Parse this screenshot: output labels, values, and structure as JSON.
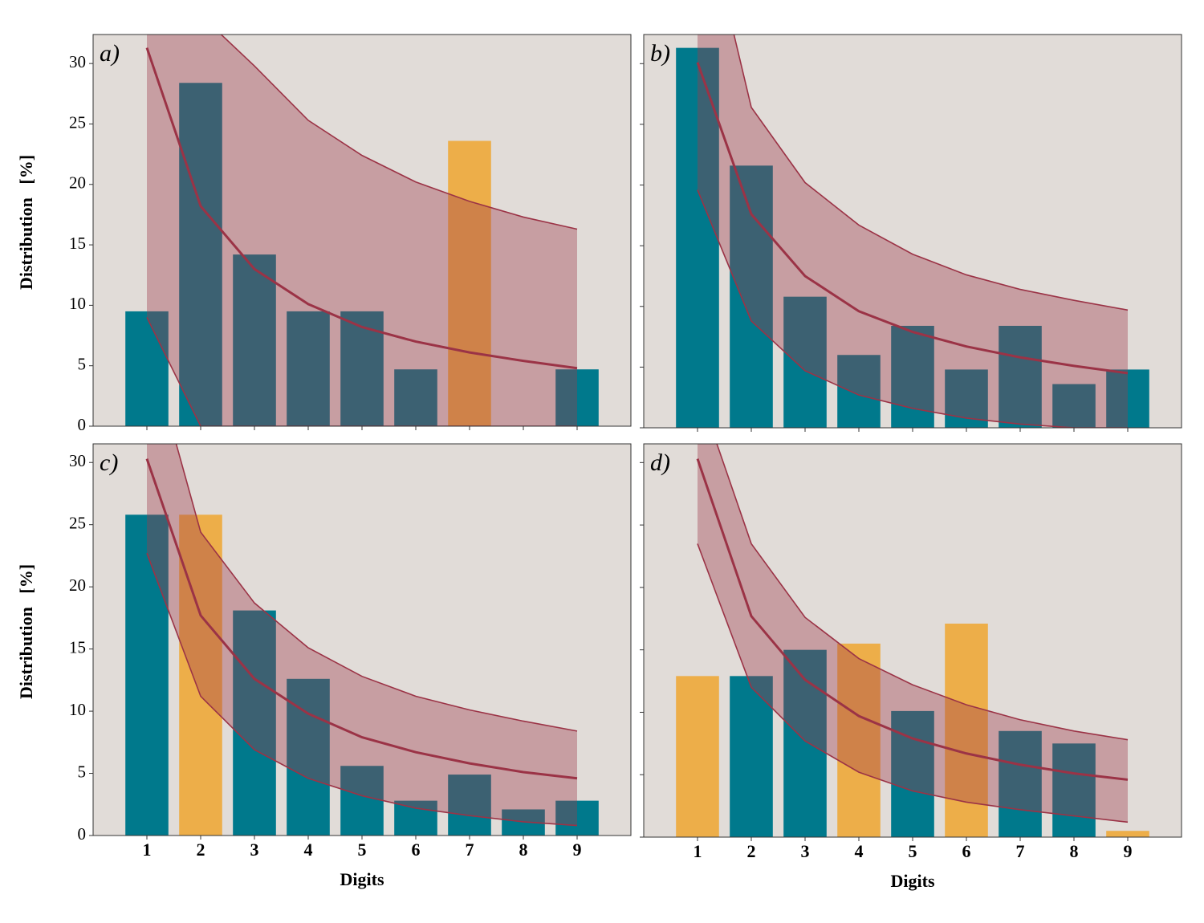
{
  "chart_data": [
    {
      "type": "bar",
      "label": "a)",
      "ylabel": "Distribution   [%]",
      "x": [
        1,
        2,
        3,
        4,
        5,
        6,
        7,
        8,
        9
      ],
      "values": [
        9.5,
        28.4,
        14.2,
        9.5,
        9.5,
        4.7,
        23.6,
        0,
        4.7
      ],
      "bar_colors": [
        "#00798c",
        "#00798c",
        "#00798c",
        "#00798c",
        "#00798c",
        "#00798c",
        "#edae49",
        "#00798c",
        "#00798c"
      ],
      "line": [
        31.3,
        18.2,
        13.0,
        10.1,
        8.2,
        7.0,
        6.1,
        5.4,
        4.8
      ],
      "upper": [
        45,
        34,
        29.8,
        25.3,
        22.4,
        20.2,
        18.6,
        17.3,
        16.3
      ],
      "lower": [
        9.0,
        0,
        0,
        0,
        0,
        0,
        0,
        0,
        0
      ],
      "line_color": "#9b3346",
      "band_color": "#9e3a4a",
      "background": "#e1dcd8",
      "xlim": [
        0,
        10
      ],
      "xticks": [
        1,
        2,
        3,
        4,
        5,
        6,
        7,
        8,
        9
      ],
      "xtick_labels": false,
      "ylim": [
        0,
        32.4
      ],
      "yticks": [
        0,
        5,
        10,
        15,
        20,
        25,
        30
      ],
      "ytick_labels": true
    },
    {
      "type": "bar",
      "label": "b)",
      "x": [
        1,
        2,
        3,
        4,
        5,
        6,
        7,
        8,
        9
      ],
      "values": [
        31.3,
        21.6,
        10.8,
        6.0,
        8.4,
        4.8,
        8.4,
        3.6,
        4.8
      ],
      "bar_colors": [
        "#00798c",
        "#00798c",
        "#00798c",
        "#00798c",
        "#00798c",
        "#00798c",
        "#00798c",
        "#00798c",
        "#00798c"
      ],
      "line": [
        30.1,
        17.6,
        12.5,
        9.6,
        7.9,
        6.7,
        5.8,
        5.1,
        4.5
      ],
      "upper": [
        45,
        26.4,
        20.2,
        16.7,
        14.3,
        12.6,
        11.4,
        10.5,
        9.7
      ],
      "lower": [
        19.6,
        8.8,
        4.7,
        2.7,
        1.6,
        0.8,
        0.3,
        0,
        0
      ],
      "line_color": "#9b3346",
      "band_color": "#9e3a4a",
      "background": "#e1dcd8",
      "xlim": [
        0,
        10
      ],
      "xticks": [
        1,
        2,
        3,
        4,
        5,
        6,
        7,
        8,
        9
      ],
      "xtick_labels": false,
      "ylim": [
        0,
        32.4
      ],
      "yticks": [
        0,
        5,
        10,
        15,
        20,
        25,
        30
      ],
      "ytick_labels": false
    },
    {
      "type": "bar",
      "label": "c)",
      "ylabel": "Distribution   [%]",
      "xlabel": "Digits",
      "x": [
        1,
        2,
        3,
        4,
        5,
        6,
        7,
        8,
        9
      ],
      "values": [
        25.8,
        25.8,
        18.1,
        12.6,
        5.6,
        2.8,
        4.9,
        2.1,
        2.8
      ],
      "bar_colors": [
        "#00798c",
        "#edae49",
        "#00798c",
        "#00798c",
        "#00798c",
        "#00798c",
        "#00798c",
        "#00798c",
        "#00798c"
      ],
      "line": [
        30.3,
        17.7,
        12.6,
        9.8,
        7.9,
        6.7,
        5.8,
        5.1,
        4.6
      ],
      "upper": [
        40,
        24.4,
        18.7,
        15.1,
        12.8,
        11.2,
        10.1,
        9.2,
        8.4
      ],
      "lower": [
        22.7,
        11.2,
        6.9,
        4.6,
        3.2,
        2.2,
        1.6,
        1.1,
        0.8
      ],
      "line_color": "#9b3346",
      "band_color": "#9e3a4a",
      "background": "#e1dcd8",
      "xlim": [
        0,
        10
      ],
      "xticks": [
        1,
        2,
        3,
        4,
        5,
        6,
        7,
        8,
        9
      ],
      "xtick_labels": true,
      "ylim": [
        0,
        31.5
      ],
      "yticks": [
        0,
        5,
        10,
        15,
        20,
        25,
        30
      ],
      "ytick_labels": true
    },
    {
      "type": "bar",
      "label": "d)",
      "xlabel": "Digits",
      "x": [
        1,
        2,
        3,
        4,
        5,
        6,
        7,
        8,
        9
      ],
      "values": [
        12.9,
        12.9,
        15.0,
        15.5,
        10.1,
        17.1,
        8.5,
        7.5,
        0.5
      ],
      "bar_colors": [
        "#edae49",
        "#00798c",
        "#00798c",
        "#edae49",
        "#00798c",
        "#edae49",
        "#00798c",
        "#00798c",
        "#edae49"
      ],
      "line": [
        30.3,
        17.7,
        12.6,
        9.7,
        7.9,
        6.7,
        5.8,
        5.1,
        4.6
      ],
      "upper": [
        36,
        23.5,
        17.6,
        14.3,
        12.2,
        10.6,
        9.4,
        8.5,
        7.8
      ],
      "lower": [
        23.5,
        12.0,
        7.7,
        5.2,
        3.7,
        2.8,
        2.2,
        1.7,
        1.2
      ],
      "line_color": "#9b3346",
      "band_color": "#9e3a4a",
      "background": "#e1dcd8",
      "xlim": [
        0,
        10
      ],
      "xticks": [
        1,
        2,
        3,
        4,
        5,
        6,
        7,
        8,
        9
      ],
      "xtick_labels": true,
      "ylim": [
        0,
        31.5
      ],
      "yticks": [
        0,
        5,
        10,
        15,
        20,
        25,
        30
      ],
      "ytick_labels": false
    }
  ]
}
